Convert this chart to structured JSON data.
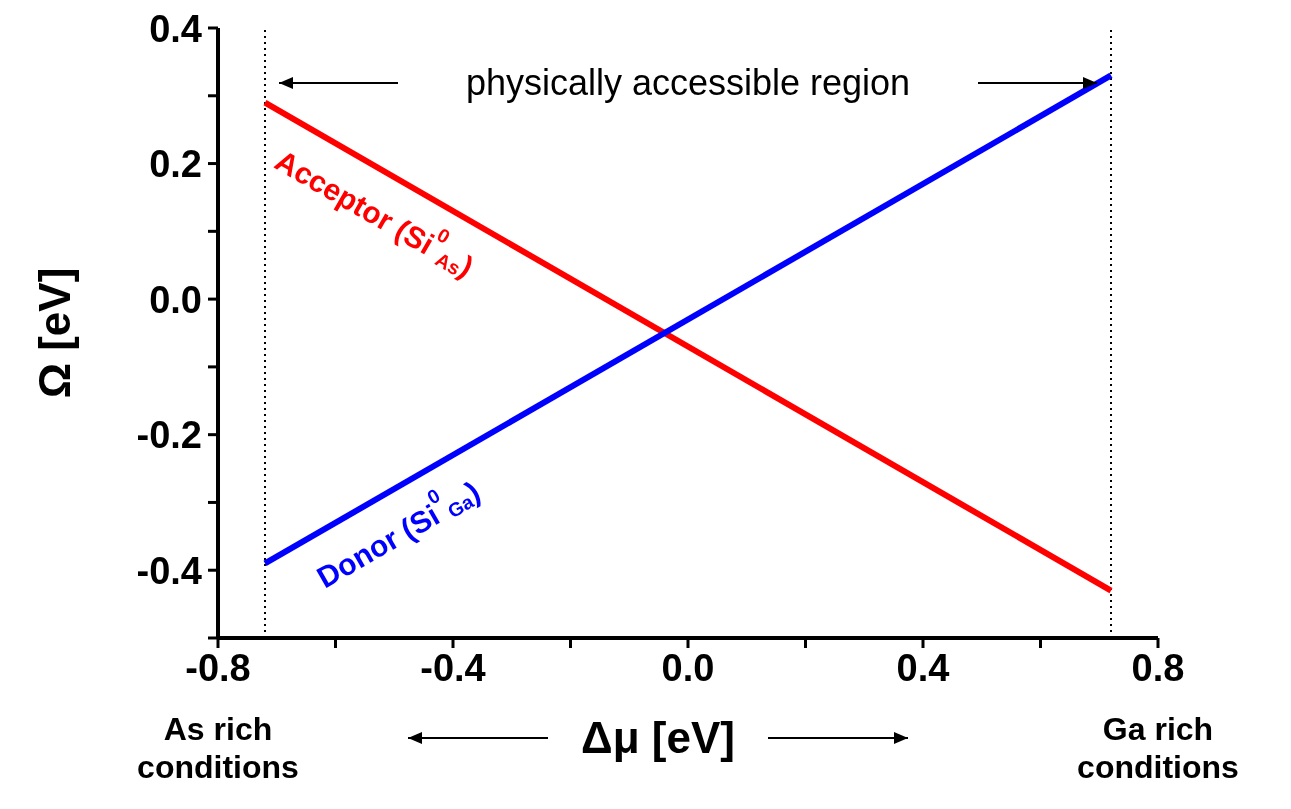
{
  "chart_data": {
    "type": "line",
    "xlabel": "Δμ [eV]",
    "ylabel": "Ω  [eV]",
    "x": [
      -0.72,
      0.72
    ],
    "series": [
      {
        "name": "Acceptor (Si$^{0}$$_{As}$)",
        "color": "#ff0000",
        "values": [
          0.29,
          -0.43
        ]
      },
      {
        "name": "Donor (Si$^{0}$$_{Ga}$)",
        "color": "#0000ff",
        "values": [
          -0.39,
          0.33
        ]
      }
    ],
    "xlim": [
      -0.8,
      0.8
    ],
    "xticks": [
      -0.8,
      {
        "value": -0.6,
        "label": null
      },
      -0.4,
      {
        "value": -0.2,
        "label": null
      },
      {
        "value": 0,
        "label": "0.0"
      },
      {
        "value": 0.2,
        "label": null
      },
      0.4,
      {
        "value": 0.6,
        "label": null
      },
      0.8
    ],
    "ylim": [
      -0.5,
      0.4
    ],
    "yticks": [
      {
        "value": -0.5,
        "label": null
      },
      -0.4,
      {
        "value": -0.3,
        "label": null
      },
      -0.2,
      {
        "value": -0.1,
        "label": null
      },
      {
        "value": 0,
        "label": "0.0"
      },
      {
        "value": 0.1,
        "label": null
      },
      0.2,
      {
        "value": 0.3,
        "label": null
      },
      0.4
    ],
    "ref_lines": [
      {
        "axis": "x",
        "value": -0.72,
        "color": "#000000",
        "line_style": "dotted"
      },
      {
        "axis": "x",
        "value": 0.72,
        "color": "#000000",
        "line_style": "dotted"
      }
    ],
    "annotations": [
      "physically accessible region",
      "As rich conditions",
      "Ga rich conditions"
    ],
    "marker": "none",
    "line_style": "solid"
  }
}
